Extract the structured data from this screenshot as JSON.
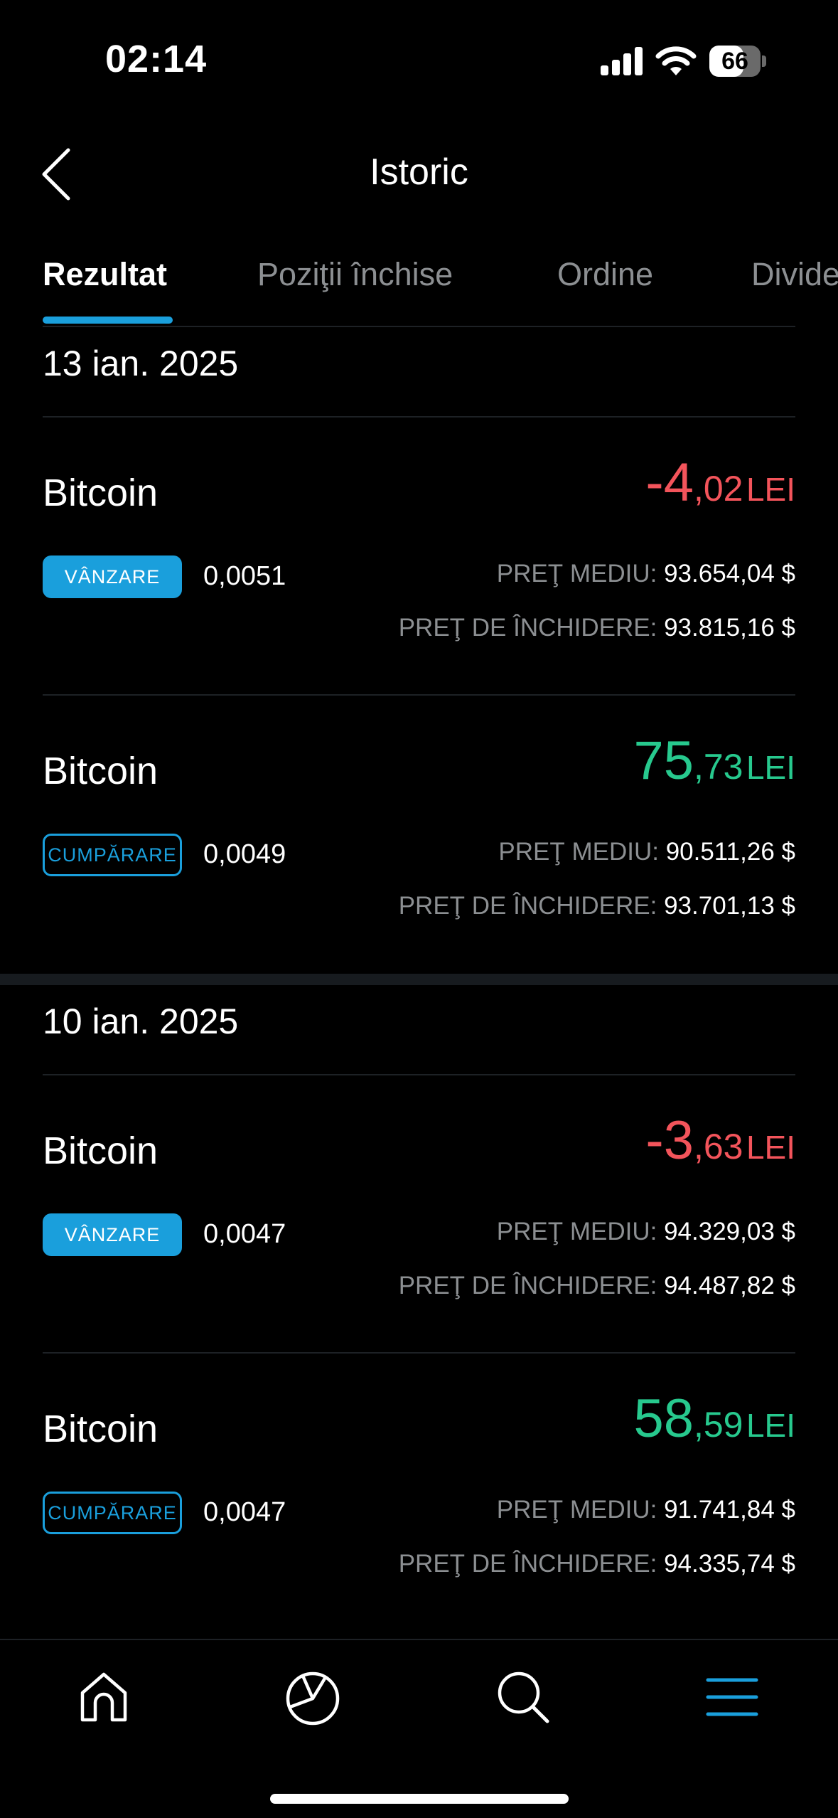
{
  "status_bar": {
    "time": "02:14",
    "battery": "66",
    "battery_level": 0.66
  },
  "header": {
    "title": "Istoric",
    "back_icon": "chevron-left-icon"
  },
  "tabs": [
    {
      "label": "Rezultat",
      "active": true
    },
    {
      "label": "Poziţii închise",
      "active": false
    },
    {
      "label": "Ordine",
      "active": false
    },
    {
      "label": "Divide",
      "active": false
    }
  ],
  "price_labels": {
    "avg": "PREŢ MEDIU:",
    "close": "PREŢ DE ÎNCHIDERE:"
  },
  "sections": [
    {
      "date": "13 ian. 2025",
      "transactions": [
        {
          "asset": "Bitcoin",
          "amount_int": "-4",
          "amount_dec": ",02",
          "currency": "LEI",
          "type": "VÂNZARE",
          "quantity": "0,0051",
          "avg_price": "93.654,04 $",
          "close_price": "93.815,16 $"
        },
        {
          "asset": "Bitcoin",
          "amount_int": "75",
          "amount_dec": ",73",
          "currency": "LEI",
          "type": "CUMPĂRARE",
          "quantity": "0,0049",
          "avg_price": "90.511,26 $",
          "close_price": "93.701,13 $"
        }
      ]
    },
    {
      "date": "10 ian. 2025",
      "transactions": [
        {
          "asset": "Bitcoin",
          "amount_int": "-3",
          "amount_dec": ",63",
          "currency": "LEI",
          "type": "VÂNZARE",
          "quantity": "0,0047",
          "avg_price": "94.329,03 $",
          "close_price": "94.487,82 $"
        },
        {
          "asset": "Bitcoin",
          "amount_int": "58",
          "amount_dec": ",59",
          "currency": "LEI",
          "type": "CUMPĂRARE",
          "quantity": "0,0047",
          "avg_price": "91.741,84 $",
          "close_price": "94.335,74 $"
        }
      ]
    }
  ],
  "bottom_nav": {
    "items": [
      "home-icon",
      "portfolio-pie-icon",
      "search-icon",
      "menu-icon"
    ],
    "active": "menu-icon"
  },
  "colors": {
    "accent": "#1a9fdc",
    "negative": "#f3545b",
    "positive": "#27c98e",
    "muted": "#8c8f92"
  }
}
